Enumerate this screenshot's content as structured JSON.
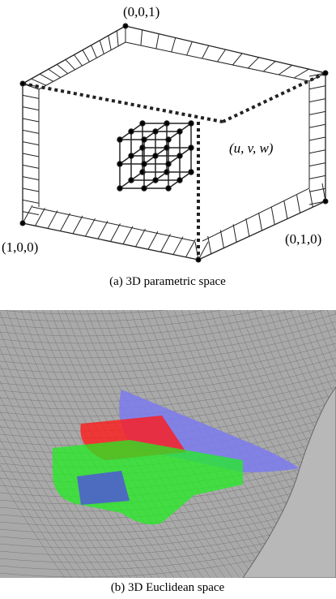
{
  "figure_a": {
    "corner_top": "(0,0,1)",
    "corner_left": "(1,0,0)",
    "corner_right": "(0,1,0)",
    "point_label": "(u, v, w)",
    "caption": "(a) 3D parametric space"
  },
  "figure_b": {
    "caption": "(b) 3D Euclidean space"
  }
}
